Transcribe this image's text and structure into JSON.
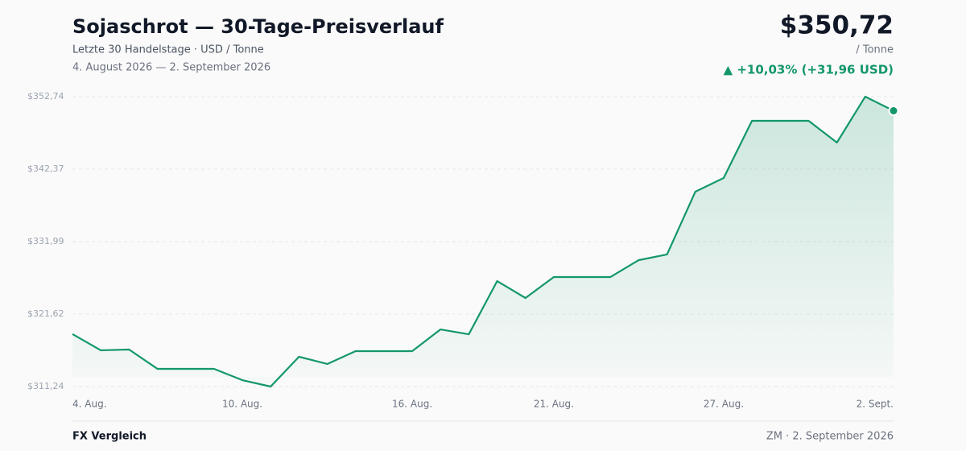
{
  "header": {
    "title": "Sojaschrot — 30-Tage-Preisverlauf",
    "subtitle": "Letzte 30 Handelstage · USD / Tonne",
    "range": "4. August 2026 — 2. September 2026",
    "price": "$350,72",
    "unit": "/ Tonne",
    "change": "▲ +10,03% (+31,96 USD)"
  },
  "chart_data": {
    "type": "line",
    "color": "#13976a",
    "grid": true,
    "categories": [
      "4. Aug.",
      null,
      null,
      null,
      null,
      null,
      "10. Aug.",
      null,
      null,
      null,
      null,
      null,
      "16. Aug.",
      null,
      null,
      null,
      null,
      "21. Aug.",
      null,
      null,
      null,
      null,
      null,
      "27. Aug.",
      null,
      null,
      null,
      null,
      null,
      "2. Sept."
    ],
    "values": [
      318.76,
      316.43,
      316.54,
      313.78,
      313.78,
      313.78,
      312.16,
      311.24,
      315.51,
      314.47,
      316.31,
      316.31,
      316.31,
      319.42,
      318.73,
      326.34,
      323.92,
      326.92,
      326.92,
      326.92,
      329.34,
      330.15,
      339.14,
      341.1,
      349.28,
      349.28,
      349.28,
      346.17,
      352.74,
      350.72
    ],
    "ylim": [
      311.24,
      352.74
    ],
    "yticks": [
      {
        "value": 311.24,
        "label": "$311,24"
      },
      {
        "value": 321.62,
        "label": "$321,62"
      },
      {
        "value": 331.99,
        "label": "$331,99"
      },
      {
        "value": 342.37,
        "label": "$342,37"
      },
      {
        "value": 352.74,
        "label": "$352,74"
      }
    ]
  },
  "footer": {
    "left": "FX Vergleich",
    "right": "ZM · 2. September 2026"
  }
}
